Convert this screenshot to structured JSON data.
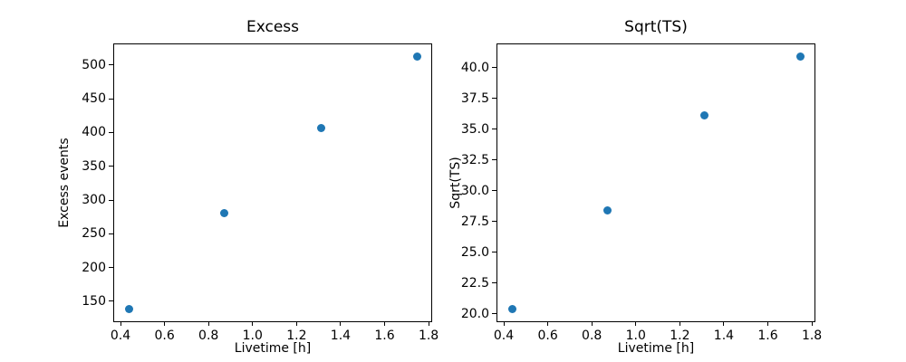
{
  "figure": {
    "background": "#ffffff",
    "text_color": "#000000"
  },
  "chart_data": [
    {
      "type": "scatter",
      "title": "Excess",
      "xlabel": "Livetime [h]",
      "ylabel": "Excess events",
      "x": [
        0.44,
        0.87,
        1.31,
        1.75
      ],
      "y": [
        139,
        280,
        407,
        512
      ],
      "xlim": [
        0.371,
        1.812
      ],
      "ylim": [
        120.4,
        530.6
      ],
      "xticks": [
        {
          "value": 0.4,
          "label": "0.4"
        },
        {
          "value": 0.6,
          "label": "0.6"
        },
        {
          "value": 0.8,
          "label": "0.8"
        },
        {
          "value": 1.0,
          "label": "1.0"
        },
        {
          "value": 1.2,
          "label": "1.2"
        },
        {
          "value": 1.4,
          "label": "1.4"
        },
        {
          "value": 1.6,
          "label": "1.6"
        },
        {
          "value": 1.8,
          "label": "1.8"
        }
      ],
      "yticks": [
        {
          "value": 150,
          "label": "150"
        },
        {
          "value": 200,
          "label": "200"
        },
        {
          "value": 250,
          "label": "250"
        },
        {
          "value": 300,
          "label": "300"
        },
        {
          "value": 350,
          "label": "350"
        },
        {
          "value": 400,
          "label": "400"
        },
        {
          "value": 450,
          "label": "450"
        },
        {
          "value": 500,
          "label": "500"
        }
      ],
      "marker_color": "#1f77b4",
      "grid": false
    },
    {
      "type": "scatter",
      "title": "Sqrt(TS)",
      "xlabel": "Livetime [h]",
      "ylabel": "Sqrt(TS)",
      "x": [
        0.44,
        0.87,
        1.31,
        1.75
      ],
      "y": [
        20.4,
        28.4,
        36.1,
        40.9
      ],
      "xlim": [
        0.371,
        1.812
      ],
      "ylim": [
        19.4,
        41.9
      ],
      "xticks": [
        {
          "value": 0.4,
          "label": "0.4"
        },
        {
          "value": 0.6,
          "label": "0.6"
        },
        {
          "value": 0.8,
          "label": "0.8"
        },
        {
          "value": 1.0,
          "label": "1.0"
        },
        {
          "value": 1.2,
          "label": "1.2"
        },
        {
          "value": 1.4,
          "label": "1.4"
        },
        {
          "value": 1.6,
          "label": "1.6"
        },
        {
          "value": 1.8,
          "label": "1.8"
        }
      ],
      "yticks": [
        {
          "value": 20.0,
          "label": "20.0"
        },
        {
          "value": 22.5,
          "label": "22.5"
        },
        {
          "value": 25.0,
          "label": "25.0"
        },
        {
          "value": 27.5,
          "label": "27.5"
        },
        {
          "value": 30.0,
          "label": "30.0"
        },
        {
          "value": 32.5,
          "label": "32.5"
        },
        {
          "value": 35.0,
          "label": "35.0"
        },
        {
          "value": 37.5,
          "label": "37.5"
        },
        {
          "value": 40.0,
          "label": "40.0"
        }
      ],
      "marker_color": "#1f77b4",
      "grid": false
    }
  ]
}
